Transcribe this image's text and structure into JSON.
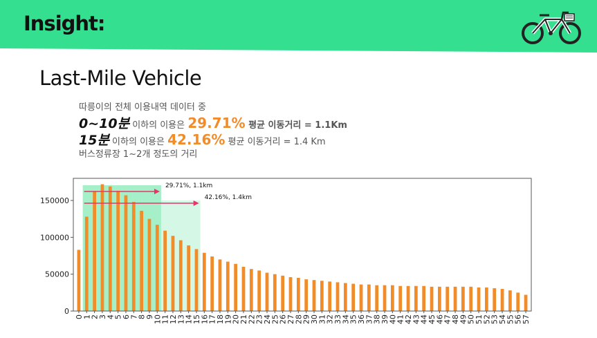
{
  "header": {
    "title": "Insight:"
  },
  "icons": {
    "bike": "bicycle-icon"
  },
  "colors": {
    "header_bg": "#34e090",
    "accent": "#f08c2a",
    "bar": "#f08c2a",
    "band_10": "#a6f0c9",
    "band_15": "#d4f7e6",
    "arrow": "#e8336b"
  },
  "subtitle": "Last-Mile Vehicle",
  "text": {
    "line1": "따릉이의 전체 이용내역 데이터 중",
    "line2_prefix": "0~10분",
    "line2_mid": " 이하의 이용은 ",
    "line2_pct": "29.71%",
    "line2_suffix": " 평균 이동거리 = 1.1Km",
    "line3_prefix": "15분",
    "line3_mid": " 이하의 이용은 ",
    "line3_pct": "42.16%",
    "line3_suffix": " 평균 이동거리 = 1.4 Km",
    "line4": "버스정류장 1~2개 정도의 거리"
  },
  "chart_data": {
    "type": "bar",
    "xlabel": "",
    "ylabel": "",
    "ylim": [
      0,
      180000
    ],
    "yticks": [
      0,
      50000,
      100000,
      150000
    ],
    "grid": false,
    "categories": [
      "0",
      "1",
      "2",
      "3",
      "4",
      "5",
      "6",
      "7",
      "8",
      "9",
      "10",
      "11",
      "12",
      "13",
      "14",
      "15",
      "16",
      "17",
      "18",
      "19",
      "20",
      "21",
      "22",
      "23",
      "24",
      "25",
      "26",
      "27",
      "28",
      "29",
      "30",
      "31",
      "32",
      "33",
      "34",
      "35",
      "36",
      "37",
      "38",
      "39",
      "40",
      "41",
      "42",
      "43",
      "44",
      "45",
      "46",
      "47",
      "48",
      "49",
      "50",
      "51",
      "52",
      "53",
      "54",
      "55",
      "56",
      "57"
    ],
    "values": [
      83000,
      128000,
      162000,
      172000,
      169000,
      163000,
      157000,
      148000,
      136000,
      125000,
      117000,
      109000,
      102000,
      96000,
      89000,
      84000,
      79000,
      74000,
      70000,
      67000,
      64000,
      60000,
      57000,
      55000,
      52000,
      50000,
      48000,
      46000,
      45000,
      43000,
      42000,
      41000,
      40000,
      39000,
      38000,
      37000,
      36000,
      36000,
      35000,
      35000,
      35000,
      34000,
      34000,
      34000,
      34000,
      33000,
      33000,
      33000,
      33000,
      33000,
      33000,
      32000,
      32000,
      31000,
      30000,
      28000,
      25000,
      22000
    ],
    "annotations": [
      {
        "text": "29.71%, 1.1km",
        "from": "1",
        "to": "10"
      },
      {
        "text": "42.16%, 1.4km",
        "from": "1",
        "to": "15"
      }
    ]
  }
}
